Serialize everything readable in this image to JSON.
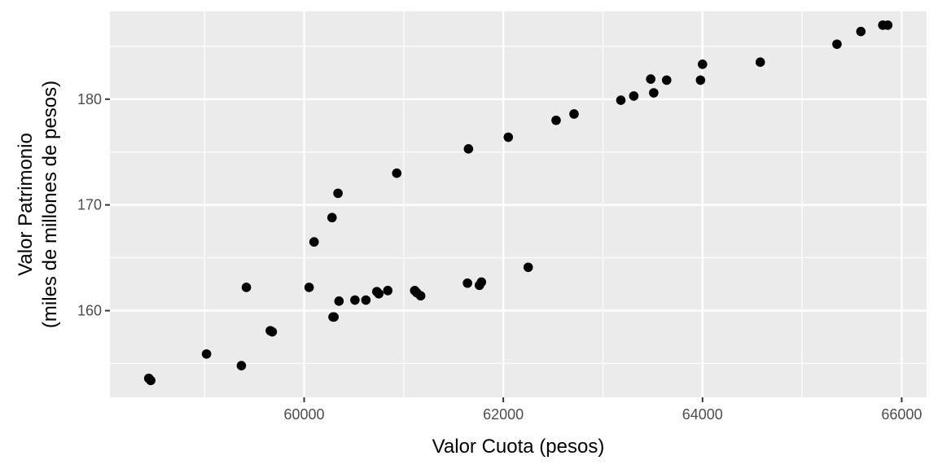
{
  "chart_data": {
    "type": "scatter",
    "title": "",
    "xlabel": "Valor Cuota (pesos)",
    "ylabel_line1": "Valor Patrimonio",
    "ylabel_line2": "(miles de millones de pesos)",
    "xlim": [
      58050,
      66250
    ],
    "ylim": [
      151.8,
      188.3
    ],
    "x_ticks": [
      60000,
      62000,
      64000,
      66000
    ],
    "x_tick_labels": [
      "60000",
      "62000",
      "64000",
      "66000"
    ],
    "y_ticks": [
      160,
      170,
      180
    ],
    "y_tick_labels": [
      "160",
      "170",
      "180"
    ],
    "x_minor_ticks": [
      59000,
      61000,
      63000,
      65000
    ],
    "y_minor_ticks": [
      155,
      165,
      175,
      185
    ],
    "grid": true,
    "legend": "none",
    "colors": {
      "panel": "#ebebeb",
      "grid": "#ffffff",
      "point": "#000000"
    },
    "points": [
      {
        "x": 58440,
        "y": 153.6
      },
      {
        "x": 58460,
        "y": 153.4
      },
      {
        "x": 59020,
        "y": 155.9
      },
      {
        "x": 59370,
        "y": 154.8
      },
      {
        "x": 59420,
        "y": 162.2
      },
      {
        "x": 59660,
        "y": 158.1
      },
      {
        "x": 59680,
        "y": 158.0
      },
      {
        "x": 60050,
        "y": 162.2
      },
      {
        "x": 60100,
        "y": 166.5
      },
      {
        "x": 60280,
        "y": 168.8
      },
      {
        "x": 60290,
        "y": 159.4
      },
      {
        "x": 60300,
        "y": 159.4
      },
      {
        "x": 60340,
        "y": 171.1
      },
      {
        "x": 60350,
        "y": 160.9
      },
      {
        "x": 60510,
        "y": 161.0
      },
      {
        "x": 60620,
        "y": 161.0
      },
      {
        "x": 60730,
        "y": 161.8
      },
      {
        "x": 60750,
        "y": 161.6
      },
      {
        "x": 60840,
        "y": 161.9
      },
      {
        "x": 60930,
        "y": 173.0
      },
      {
        "x": 61110,
        "y": 161.9
      },
      {
        "x": 61130,
        "y": 161.7
      },
      {
        "x": 61170,
        "y": 161.4
      },
      {
        "x": 61640,
        "y": 162.6
      },
      {
        "x": 61650,
        "y": 175.3
      },
      {
        "x": 61760,
        "y": 162.4
      },
      {
        "x": 61780,
        "y": 162.7
      },
      {
        "x": 62050,
        "y": 176.4
      },
      {
        "x": 62250,
        "y": 164.1
      },
      {
        "x": 62530,
        "y": 178.0
      },
      {
        "x": 62710,
        "y": 178.6
      },
      {
        "x": 63180,
        "y": 179.9
      },
      {
        "x": 63310,
        "y": 180.3
      },
      {
        "x": 63480,
        "y": 181.9
      },
      {
        "x": 63510,
        "y": 180.6
      },
      {
        "x": 63640,
        "y": 181.8
      },
      {
        "x": 63980,
        "y": 181.8
      },
      {
        "x": 64000,
        "y": 183.3
      },
      {
        "x": 64580,
        "y": 183.5
      },
      {
        "x": 65350,
        "y": 185.2
      },
      {
        "x": 65590,
        "y": 186.4
      },
      {
        "x": 65810,
        "y": 187.0
      },
      {
        "x": 65860,
        "y": 187.0
      }
    ]
  }
}
